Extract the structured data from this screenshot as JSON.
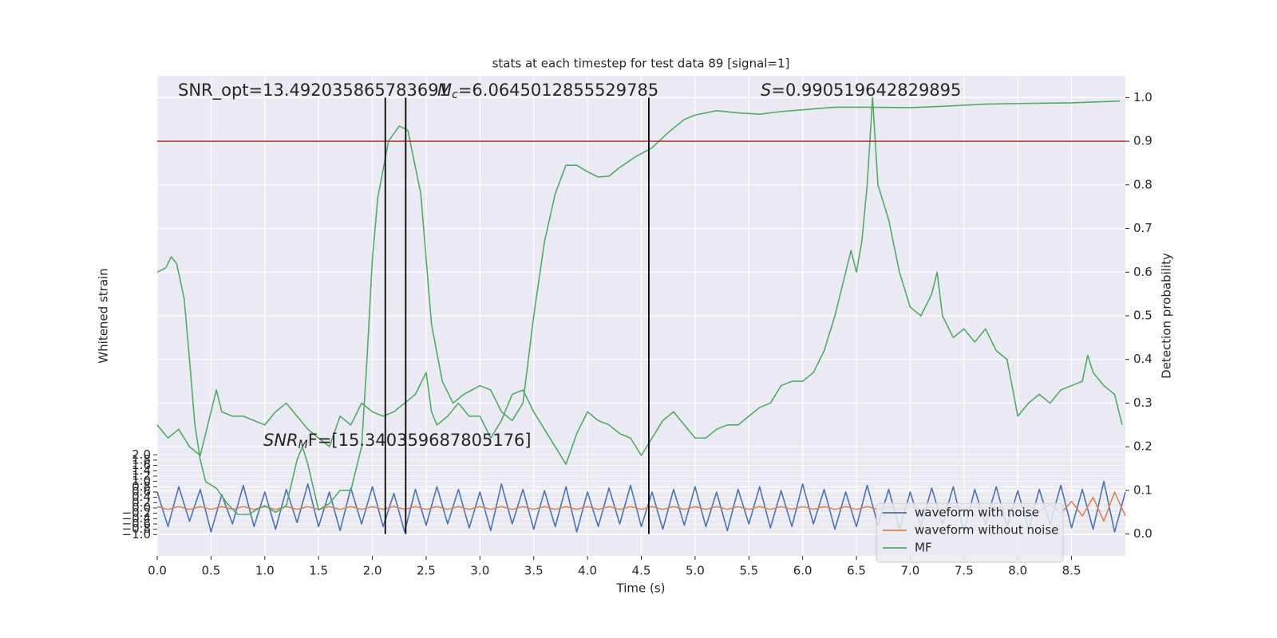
{
  "chart_data": {
    "type": "line",
    "title": "stats at each timestep for test data 89 [signal=1]",
    "xlabel": "Time (s)",
    "ylabel": "Whitened strain",
    "y2label": "Detection probability",
    "xlim": [
      0,
      9.0
    ],
    "ylim": [
      -1.8,
      16.25
    ],
    "y2lim": [
      -0.05,
      1.05
    ],
    "xticks": [
      {
        "value": 0,
        "label": "0.0"
      },
      0.5,
      {
        "value": 1,
        "label": "1.0"
      },
      1.5,
      {
        "value": 2,
        "label": "2.0"
      },
      2.5,
      {
        "value": 3,
        "label": "3.0"
      },
      3.5,
      {
        "value": 4,
        "label": "4.0"
      },
      4.5,
      {
        "value": 5,
        "label": "5.0"
      },
      5.5,
      {
        "value": 6,
        "label": "6.0"
      },
      6.5,
      {
        "value": 7,
        "label": "7.0"
      },
      7.5,
      {
        "value": 8,
        "label": "8.0"
      },
      8.5
    ],
    "yticks": [
      {
        "value": 2,
        "label": "2.0"
      },
      1.8,
      1.6,
      1.4,
      1.2,
      {
        "value": 1,
        "label": "1.0"
      },
      0.8,
      0.6,
      0.4,
      0.2,
      {
        "value": 0,
        "label": "0.0"
      },
      {
        "value": -0.2,
        "label": "−0.2"
      },
      {
        "value": -0.4,
        "label": "−0.4"
      },
      {
        "value": -0.6,
        "label": "−0.6"
      },
      {
        "value": -0.8,
        "label": "−0.8"
      },
      {
        "value": -1,
        "label": "−1.0"
      }
    ],
    "y2ticks": [
      {
        "value": 0,
        "label": "0.0"
      },
      0.1,
      0.2,
      0.3,
      0.4,
      0.5,
      0.6,
      0.7,
      0.8,
      0.9,
      {
        "value": 1,
        "label": "1.0"
      }
    ],
    "grid": true,
    "legend": "lower right",
    "threshold": {
      "value": 0.9,
      "color": "#b8312f"
    },
    "vlines": {
      "values": [
        2.12,
        2.31,
        4.57
      ],
      "color": "#000000"
    },
    "annotations": [
      {
        "text": "SNR_opt=13.492035865783691"
      },
      {
        "symbol": "M",
        "sub": "c",
        "text": "=6.0645012855529785"
      },
      {
        "symbol": "S",
        "text": "=0.990519642829895"
      },
      {
        "symbol": "SNR",
        "sub": "M",
        "text": "F=[15.340359687805176]"
      }
    ],
    "series": [
      {
        "name": "waveform with noise",
        "color": "#4c72b0",
        "axis": "y",
        "x": [
          0,
          0.1,
          0.2,
          0.3,
          0.4,
          0.5,
          0.6,
          0.7,
          0.8,
          0.9,
          1,
          1.1,
          1.2,
          1.3,
          1.4,
          1.5,
          1.6,
          1.7,
          1.8,
          1.9,
          2,
          2.1,
          2.2,
          2.3,
          2.4,
          2.5,
          2.6,
          2.7,
          2.8,
          2.9,
          3,
          3.1,
          3.2,
          3.3,
          3.4,
          3.5,
          3.6,
          3.7,
          3.8,
          3.9,
          4,
          4.1,
          4.2,
          4.3,
          4.4,
          4.5,
          4.6,
          4.7,
          4.8,
          4.9,
          5,
          5.1,
          5.2,
          5.3,
          5.4,
          5.5,
          5.6,
          5.7,
          5.8,
          5.9,
          6,
          6.1,
          6.2,
          6.3,
          6.4,
          6.5,
          6.6,
          6.7,
          6.8,
          6.9,
          7,
          7.1,
          7.2,
          7.3,
          7.4,
          7.5,
          7.6,
          7.7,
          7.8,
          7.9,
          8,
          8.1,
          8.2,
          8.3,
          8.4,
          8.5,
          8.6,
          8.7,
          8.8,
          8.9,
          9.0
        ],
        "values": [
          0.6,
          -0.7,
          0.8,
          -0.5,
          0.7,
          -0.9,
          0.5,
          -0.6,
          0.85,
          -0.7,
          0.6,
          -0.8,
          0.7,
          -0.55,
          0.9,
          -0.7,
          0.6,
          -0.85,
          0.75,
          -0.6,
          0.8,
          -0.7,
          0.55,
          -0.9,
          0.7,
          -0.65,
          0.8,
          -0.6,
          0.7,
          -0.75,
          0.6,
          -0.85,
          0.9,
          -0.6,
          0.7,
          -0.8,
          0.65,
          -0.7,
          0.8,
          -0.9,
          0.6,
          -0.7,
          0.75,
          -0.6,
          0.85,
          -0.7,
          0.6,
          -0.8,
          0.7,
          -0.65,
          0.8,
          -0.7,
          0.6,
          -0.85,
          0.7,
          -0.6,
          0.8,
          -0.75,
          0.65,
          -0.7,
          0.9,
          -0.6,
          0.7,
          -0.8,
          0.6,
          -0.7,
          0.85,
          -0.65,
          0.7,
          -0.8,
          0.6,
          -0.7,
          0.75,
          -0.6,
          0.8,
          -0.9,
          0.7,
          -0.6,
          0.8,
          -0.7,
          0.65,
          -0.8,
          0.7,
          -0.6,
          0.85,
          -0.75,
          0.7,
          -0.8,
          1.0,
          -0.9,
          0.6
        ]
      },
      {
        "name": "waveform without noise",
        "color": "#dd8452",
        "axis": "y",
        "x": [
          0,
          0.1,
          0.2,
          0.3,
          0.4,
          0.5,
          0.6,
          0.7,
          0.8,
          0.9,
          1,
          1.1,
          1.2,
          1.3,
          1.4,
          1.5,
          1.6,
          1.7,
          1.8,
          1.9,
          2,
          2.1,
          2.2,
          2.3,
          2.4,
          2.5,
          2.6,
          2.7,
          2.8,
          2.9,
          3,
          3.1,
          3.2,
          3.3,
          3.4,
          3.5,
          3.6,
          3.7,
          3.8,
          3.9,
          4,
          4.1,
          4.2,
          4.3,
          4.4,
          4.5,
          4.6,
          4.7,
          4.8,
          4.9,
          5,
          5.1,
          5.2,
          5.3,
          5.4,
          5.5,
          5.6,
          5.7,
          5.8,
          5.9,
          6,
          6.1,
          6.2,
          6.3,
          6.4,
          6.5,
          6.6,
          6.7,
          6.8,
          6.9,
          7,
          7.1,
          7.2,
          7.3,
          7.4,
          7.5,
          7.6,
          7.7,
          7.8,
          7.9,
          8,
          8.1,
          8.2,
          8.3,
          8.4,
          8.5,
          8.6,
          8.7,
          8.8,
          8.9,
          9.0
        ],
        "values": [
          0.05,
          -0.05,
          0.05,
          -0.05,
          0.05,
          -0.05,
          0.05,
          -0.05,
          0.05,
          -0.05,
          0.05,
          -0.05,
          0.05,
          -0.05,
          0.05,
          -0.05,
          0.05,
          -0.05,
          0.05,
          -0.05,
          0.05,
          -0.05,
          0.05,
          -0.05,
          0.05,
          -0.05,
          0.05,
          -0.05,
          0.05,
          -0.05,
          0.05,
          -0.05,
          0.05,
          -0.05,
          0.05,
          -0.05,
          0.05,
          -0.05,
          0.05,
          -0.05,
          0.05,
          -0.05,
          0.05,
          -0.05,
          0.05,
          -0.05,
          0.05,
          -0.05,
          0.05,
          -0.05,
          0.05,
          -0.05,
          0.05,
          -0.05,
          0.05,
          -0.05,
          0.05,
          -0.05,
          0.05,
          -0.05,
          0.05,
          -0.05,
          0.05,
          -0.05,
          0.05,
          -0.05,
          0.05,
          -0.05,
          0.05,
          -0.05,
          0.05,
          -0.05,
          0.05,
          -0.05,
          0.05,
          -0.05,
          0.05,
          -0.05,
          0.05,
          -0.05,
          0.05,
          0.1,
          -0.12,
          0.15,
          -0.2,
          0.25,
          -0.3,
          0.4,
          -0.5,
          0.6,
          -0.3
        ]
      },
      {
        "name": "MF",
        "color": "#55a868",
        "axis": "y2",
        "x": [
          0,
          0.1,
          0.2,
          0.3,
          0.4,
          0.5,
          0.55,
          0.6,
          0.7,
          0.8,
          0.9,
          1,
          1.1,
          1.2,
          1.3,
          1.4,
          1.5,
          1.6,
          1.7,
          1.8,
          1.9,
          2,
          2.1,
          2.2,
          2.3,
          2.4,
          2.5,
          2.55,
          2.6,
          2.7,
          2.8,
          2.9,
          3,
          3.1,
          3.2,
          3.3,
          3.4,
          3.5,
          3.6,
          3.7,
          3.8,
          3.9,
          4,
          4.1,
          4.2,
          4.3,
          4.4,
          4.5,
          4.6,
          4.7,
          4.8,
          4.9,
          5,
          5.1,
          5.2,
          5.3,
          5.4,
          5.5,
          5.6,
          5.7,
          5.8,
          5.9,
          6,
          6.1,
          6.2,
          6.3,
          6.4,
          6.45,
          6.5,
          6.55,
          6.6,
          6.65,
          6.7,
          6.8,
          6.9,
          7,
          7.1,
          7.2,
          7.25,
          7.3,
          7.4,
          7.5,
          7.6,
          7.7,
          7.8,
          7.9,
          8,
          8.1,
          8.2,
          8.3,
          8.4,
          8.5,
          8.6,
          8.65,
          8.7,
          8.8,
          8.9,
          8.97
        ],
        "values": [
          0.25,
          0.22,
          0.24,
          0.2,
          0.18,
          0.28,
          0.33,
          0.28,
          0.27,
          0.27,
          0.26,
          0.25,
          0.28,
          0.3,
          0.27,
          0.24,
          0.22,
          0.2,
          0.27,
          0.25,
          0.3,
          0.28,
          0.27,
          0.28,
          0.3,
          0.32,
          0.37,
          0.28,
          0.25,
          0.27,
          0.3,
          0.27,
          0.27,
          0.22,
          0.26,
          0.32,
          0.33,
          0.28,
          0.24,
          0.2,
          0.16,
          0.23,
          0.28,
          0.26,
          0.25,
          0.23,
          0.22,
          0.18,
          0.22,
          0.26,
          0.28,
          0.25,
          0.22,
          0.22,
          0.24,
          0.25,
          0.25,
          0.27,
          0.29,
          0.3,
          0.34,
          0.35,
          0.35,
          0.37,
          0.42,
          0.5,
          0.6,
          0.65,
          0.6,
          0.67,
          0.8,
          1.0,
          0.8,
          0.72,
          0.6,
          0.52,
          0.5,
          0.55,
          0.6,
          0.5,
          0.45,
          0.47,
          0.44,
          0.47,
          0.42,
          0.4,
          0.27,
          0.3,
          0.32,
          0.3,
          0.33,
          0.34,
          0.35,
          0.41,
          0.37,
          0.34,
          0.32,
          0.25
        ]
      },
      {
        "color": "#55a868",
        "axis": "y2",
        "x": [
          0,
          0.08,
          0.13,
          0.18,
          0.25,
          0.3,
          0.35,
          0.4,
          0.45,
          0.55,
          0.65,
          0.75,
          0.85,
          0.95,
          1.0,
          1.1,
          1.2,
          1.3,
          1.35,
          1.4,
          1.5,
          1.6,
          1.7,
          1.8,
          1.9,
          1.95,
          2.0,
          2.05,
          2.15,
          2.25,
          2.33,
          2.45,
          2.55,
          2.65,
          2.75,
          2.85,
          3.0,
          3.1,
          3.2,
          3.3,
          3.4,
          3.5,
          3.6,
          3.7,
          3.8,
          3.9,
          4.0,
          4.1,
          4.2,
          4.3,
          4.45,
          4.6,
          4.75,
          4.9,
          5.0,
          5.2,
          5.4,
          5.6,
          5.8,
          6.0,
          6.3,
          6.6,
          7.0,
          7.3,
          7.7,
          8.2,
          8.5,
          8.95
        ],
        "values": [
          0.6,
          0.61,
          0.635,
          0.62,
          0.54,
          0.4,
          0.25,
          0.17,
          0.12,
          0.105,
          0.07,
          0.045,
          0.045,
          0.06,
          0.065,
          0.05,
          0.065,
          0.17,
          0.2,
          0.16,
          0.055,
          0.07,
          0.1,
          0.1,
          0.2,
          0.4,
          0.63,
          0.77,
          0.9,
          0.935,
          0.925,
          0.78,
          0.48,
          0.35,
          0.3,
          0.32,
          0.34,
          0.33,
          0.28,
          0.26,
          0.3,
          0.5,
          0.67,
          0.78,
          0.845,
          0.845,
          0.83,
          0.818,
          0.82,
          0.84,
          0.865,
          0.885,
          0.92,
          0.95,
          0.96,
          0.97,
          0.965,
          0.962,
          0.968,
          0.972,
          0.978,
          0.978,
          0.977,
          0.98,
          0.985,
          0.987,
          0.988,
          0.992
        ]
      }
    ]
  }
}
